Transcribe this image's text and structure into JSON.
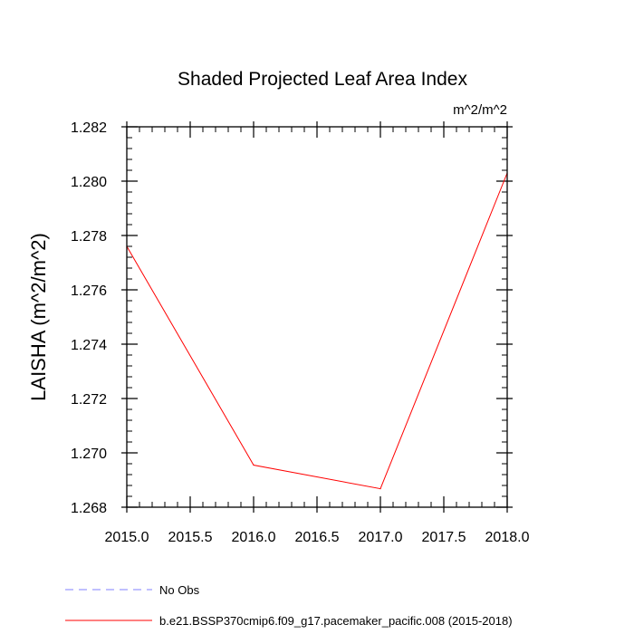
{
  "chart_data": {
    "type": "line",
    "title": "Shaded Projected Leaf Area Index",
    "units_label": "m^2/m^2",
    "ylabel": "LAISHA  (m^2/m^2)",
    "xlabel": "",
    "xlim": [
      2015.0,
      2018.0
    ],
    "ylim": [
      1.268,
      1.282
    ],
    "x_ticks": [
      "2015.0",
      "2015.5",
      "2016.0",
      "2016.5",
      "2017.0",
      "2017.5",
      "2018.0"
    ],
    "y_ticks": [
      "1.268",
      "1.270",
      "1.272",
      "1.274",
      "1.276",
      "1.278",
      "1.280",
      "1.282"
    ],
    "x_minor_step": 0.1,
    "y_minor_step": 0.0004,
    "grid": false,
    "legend_position": "bottom-left",
    "series": [
      {
        "name": "No Obs",
        "color": "#8080ff",
        "dash": true,
        "x": [],
        "y": []
      },
      {
        "name": "b.e21.BSSP370cmip6.f09_g17.pacemaker_pacific.008 (2015-2018)",
        "color": "#ff0000",
        "dash": false,
        "x": [
          2015.0,
          2016.0,
          2017.0,
          2018.0
        ],
        "y": [
          1.2776,
          1.26955,
          1.26868,
          1.2803
        ]
      }
    ]
  }
}
